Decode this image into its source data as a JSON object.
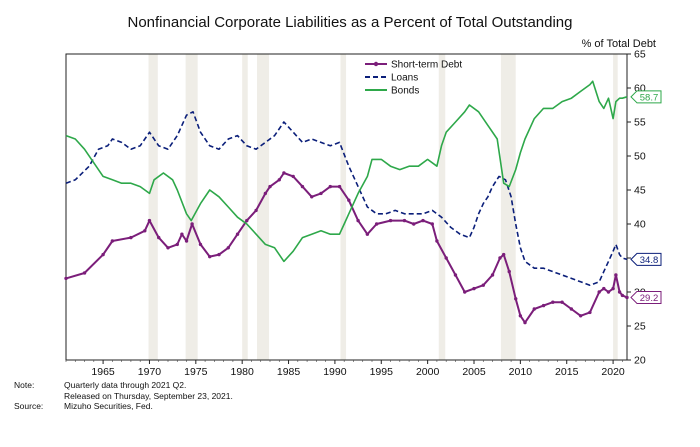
{
  "chart_data": {
    "type": "line",
    "title": "Nonfinancial Corporate Liabilities as a Percent of Total Outstanding",
    "ylabel": "% of Total Debt",
    "xlim": [
      1961,
      2021.5
    ],
    "ylim": [
      20,
      65
    ],
    "x_ticks": [
      "1965",
      "1970",
      "1975",
      "1980",
      "1985",
      "1990",
      "1995",
      "2000",
      "2005",
      "2010",
      "2015",
      "2020"
    ],
    "y_ticks": [
      "20",
      "25",
      "30",
      "35",
      "40",
      "45",
      "50",
      "55",
      "60",
      "65"
    ],
    "recessions": [
      [
        1969.9,
        1970.9
      ],
      [
        1973.9,
        1975.2
      ],
      [
        1980.0,
        1980.6
      ],
      [
        1981.6,
        1982.9
      ],
      [
        1990.6,
        1991.2
      ],
      [
        2001.2,
        2001.9
      ],
      [
        2007.9,
        2009.5
      ],
      [
        2020.0,
        2020.5
      ]
    ],
    "legend": {
      "position": "top-center"
    },
    "series": [
      {
        "name": "Short-term Debt",
        "color": "#7b1e7a",
        "style": "solid-markers",
        "end_label": "29.2",
        "points": [
          [
            1961.0,
            32.0
          ],
          [
            1963.0,
            32.8
          ],
          [
            1965.0,
            35.5
          ],
          [
            1966.0,
            37.5
          ],
          [
            1968.0,
            38.0
          ],
          [
            1969.5,
            39.0
          ],
          [
            1970.0,
            40.5
          ],
          [
            1971.0,
            38.0
          ],
          [
            1972.0,
            36.5
          ],
          [
            1973.0,
            37.0
          ],
          [
            1973.5,
            38.5
          ],
          [
            1974.0,
            37.5
          ],
          [
            1974.6,
            40.0
          ],
          [
            1975.5,
            37.0
          ],
          [
            1976.5,
            35.2
          ],
          [
            1977.5,
            35.5
          ],
          [
            1978.5,
            36.5
          ],
          [
            1979.5,
            38.5
          ],
          [
            1980.5,
            40.5
          ],
          [
            1981.5,
            42.0
          ],
          [
            1982.5,
            44.5
          ],
          [
            1983.0,
            45.5
          ],
          [
            1984.0,
            46.5
          ],
          [
            1984.5,
            47.5
          ],
          [
            1985.5,
            47.0
          ],
          [
            1986.5,
            45.5
          ],
          [
            1987.5,
            44.0
          ],
          [
            1988.5,
            44.5
          ],
          [
            1989.5,
            45.5
          ],
          [
            1990.5,
            45.5
          ],
          [
            1991.5,
            43.5
          ],
          [
            1992.5,
            40.5
          ],
          [
            1993.5,
            38.5
          ],
          [
            1994.5,
            40.0
          ],
          [
            1996.0,
            40.5
          ],
          [
            1997.5,
            40.5
          ],
          [
            1998.5,
            40.0
          ],
          [
            1999.5,
            40.5
          ],
          [
            2000.5,
            40.0
          ],
          [
            2001.0,
            37.5
          ],
          [
            2002.0,
            35.0
          ],
          [
            2003.0,
            32.5
          ],
          [
            2004.0,
            30.0
          ],
          [
            2005.0,
            30.5
          ],
          [
            2006.0,
            31.0
          ],
          [
            2007.0,
            32.5
          ],
          [
            2007.8,
            35.0
          ],
          [
            2008.2,
            35.5
          ],
          [
            2008.8,
            33.0
          ],
          [
            2009.5,
            29.0
          ],
          [
            2010.0,
            26.5
          ],
          [
            2010.5,
            25.5
          ],
          [
            2011.5,
            27.5
          ],
          [
            2012.5,
            28.0
          ],
          [
            2013.5,
            28.5
          ],
          [
            2014.5,
            28.5
          ],
          [
            2015.5,
            27.5
          ],
          [
            2016.5,
            26.5
          ],
          [
            2017.5,
            27.0
          ],
          [
            2018.5,
            30.0
          ],
          [
            2019.0,
            30.5
          ],
          [
            2019.5,
            30.0
          ],
          [
            2020.0,
            30.5
          ],
          [
            2020.3,
            32.5
          ],
          [
            2020.7,
            30.0
          ],
          [
            2021.0,
            29.5
          ],
          [
            2021.5,
            29.2
          ]
        ]
      },
      {
        "name": "Loans",
        "color": "#0b1f7a",
        "style": "dashed",
        "end_label": "34.8",
        "points": [
          [
            1961.0,
            46.0
          ],
          [
            1962.0,
            46.5
          ],
          [
            1963.5,
            48.5
          ],
          [
            1964.5,
            51.0
          ],
          [
            1965.5,
            51.5
          ],
          [
            1966.0,
            52.5
          ],
          [
            1967.0,
            52.0
          ],
          [
            1968.0,
            51.0
          ],
          [
            1969.0,
            51.5
          ],
          [
            1970.0,
            53.5
          ],
          [
            1971.0,
            51.5
          ],
          [
            1972.0,
            51.0
          ],
          [
            1973.0,
            53.0
          ],
          [
            1974.0,
            56.0
          ],
          [
            1974.7,
            56.5
          ],
          [
            1975.5,
            53.5
          ],
          [
            1976.5,
            51.5
          ],
          [
            1977.5,
            51.0
          ],
          [
            1978.5,
            52.5
          ],
          [
            1979.5,
            53.0
          ],
          [
            1980.5,
            51.5
          ],
          [
            1981.5,
            51.0
          ],
          [
            1982.5,
            52.0
          ],
          [
            1983.5,
            53.0
          ],
          [
            1984.5,
            55.0
          ],
          [
            1985.5,
            53.5
          ],
          [
            1986.5,
            52.0
          ],
          [
            1987.5,
            52.5
          ],
          [
            1988.5,
            52.0
          ],
          [
            1989.5,
            51.5
          ],
          [
            1990.5,
            52.0
          ],
          [
            1991.5,
            48.5
          ],
          [
            1992.5,
            45.5
          ],
          [
            1993.5,
            42.5
          ],
          [
            1994.5,
            41.5
          ],
          [
            1995.5,
            41.5
          ],
          [
            1996.5,
            42.0
          ],
          [
            1997.5,
            41.5
          ],
          [
            1998.5,
            41.5
          ],
          [
            1999.5,
            41.5
          ],
          [
            2000.5,
            42.0
          ],
          [
            2001.5,
            41.0
          ],
          [
            2002.5,
            39.5
          ],
          [
            2003.5,
            38.5
          ],
          [
            2004.5,
            38.0
          ],
          [
            2005.0,
            39.5
          ],
          [
            2005.5,
            41.5
          ],
          [
            2006.0,
            43.0
          ],
          [
            2006.5,
            44.0
          ],
          [
            2007.0,
            45.5
          ],
          [
            2007.7,
            47.0
          ],
          [
            2008.4,
            46.5
          ],
          [
            2009.0,
            44.0
          ],
          [
            2009.5,
            40.0
          ],
          [
            2010.0,
            36.5
          ],
          [
            2010.5,
            34.5
          ],
          [
            2011.5,
            33.5
          ],
          [
            2012.5,
            33.5
          ],
          [
            2013.5,
            33.0
          ],
          [
            2014.5,
            32.5
          ],
          [
            2015.5,
            32.0
          ],
          [
            2016.5,
            31.5
          ],
          [
            2017.5,
            31.0
          ],
          [
            2018.5,
            31.5
          ],
          [
            2019.0,
            33.0
          ],
          [
            2019.5,
            34.5
          ],
          [
            2020.0,
            36.0
          ],
          [
            2020.3,
            37.0
          ],
          [
            2020.7,
            35.5
          ],
          [
            2021.0,
            35.0
          ],
          [
            2021.5,
            34.8
          ]
        ]
      },
      {
        "name": "Bonds",
        "color": "#2ea84a",
        "style": "solid",
        "end_label": "58.7",
        "points": [
          [
            1961.0,
            53.0
          ],
          [
            1962.0,
            52.5
          ],
          [
            1963.0,
            51.0
          ],
          [
            1964.0,
            49.0
          ],
          [
            1965.0,
            47.0
          ],
          [
            1966.0,
            46.5
          ],
          [
            1967.0,
            46.0
          ],
          [
            1968.0,
            46.0
          ],
          [
            1969.0,
            45.5
          ],
          [
            1970.0,
            44.5
          ],
          [
            1970.5,
            46.5
          ],
          [
            1971.5,
            47.5
          ],
          [
            1972.5,
            46.5
          ],
          [
            1973.0,
            45.0
          ],
          [
            1974.0,
            41.5
          ],
          [
            1974.5,
            40.5
          ],
          [
            1975.5,
            43.0
          ],
          [
            1976.5,
            45.0
          ],
          [
            1977.5,
            44.0
          ],
          [
            1978.5,
            42.5
          ],
          [
            1979.5,
            41.0
          ],
          [
            1980.5,
            40.0
          ],
          [
            1981.5,
            38.5
          ],
          [
            1982.5,
            37.0
          ],
          [
            1983.5,
            36.5
          ],
          [
            1984.5,
            34.5
          ],
          [
            1985.5,
            36.0
          ],
          [
            1986.5,
            38.0
          ],
          [
            1987.5,
            38.5
          ],
          [
            1988.5,
            39.0
          ],
          [
            1989.5,
            38.5
          ],
          [
            1990.5,
            38.5
          ],
          [
            1991.0,
            40.0
          ],
          [
            1991.5,
            41.5
          ],
          [
            1992.5,
            44.5
          ],
          [
            1993.5,
            47.0
          ],
          [
            1994.0,
            49.5
          ],
          [
            1995.0,
            49.5
          ],
          [
            1996.0,
            48.5
          ],
          [
            1997.0,
            48.0
          ],
          [
            1998.0,
            48.5
          ],
          [
            1999.0,
            48.5
          ],
          [
            2000.0,
            49.5
          ],
          [
            2001.0,
            48.5
          ],
          [
            2001.5,
            51.5
          ],
          [
            2002.0,
            53.5
          ],
          [
            2003.0,
            55.0
          ],
          [
            2004.0,
            56.5
          ],
          [
            2004.5,
            57.5
          ],
          [
            2005.5,
            56.5
          ],
          [
            2006.5,
            54.5
          ],
          [
            2007.5,
            52.5
          ],
          [
            2008.2,
            46.0
          ],
          [
            2008.8,
            45.5
          ],
          [
            2009.5,
            48.0
          ],
          [
            2010.0,
            50.5
          ],
          [
            2010.5,
            52.5
          ],
          [
            2011.5,
            55.5
          ],
          [
            2012.5,
            57.0
          ],
          [
            2013.5,
            57.0
          ],
          [
            2014.5,
            58.0
          ],
          [
            2015.5,
            58.5
          ],
          [
            2016.5,
            59.5
          ],
          [
            2017.5,
            60.5
          ],
          [
            2017.8,
            61.0
          ],
          [
            2018.5,
            58.0
          ],
          [
            2019.0,
            57.0
          ],
          [
            2019.5,
            58.5
          ],
          [
            2020.0,
            55.5
          ],
          [
            2020.3,
            58.0
          ],
          [
            2020.7,
            58.5
          ],
          [
            2021.0,
            58.5
          ],
          [
            2021.5,
            58.7
          ]
        ]
      }
    ]
  },
  "notes": [
    {
      "key": "Note:",
      "text": "Quarterly data through 2021 Q2."
    },
    {
      "key": "",
      "text": "Released on Thursday, September 23, 2021."
    },
    {
      "key": "Source:",
      "text": "Mizuho Securities, Fed."
    }
  ]
}
